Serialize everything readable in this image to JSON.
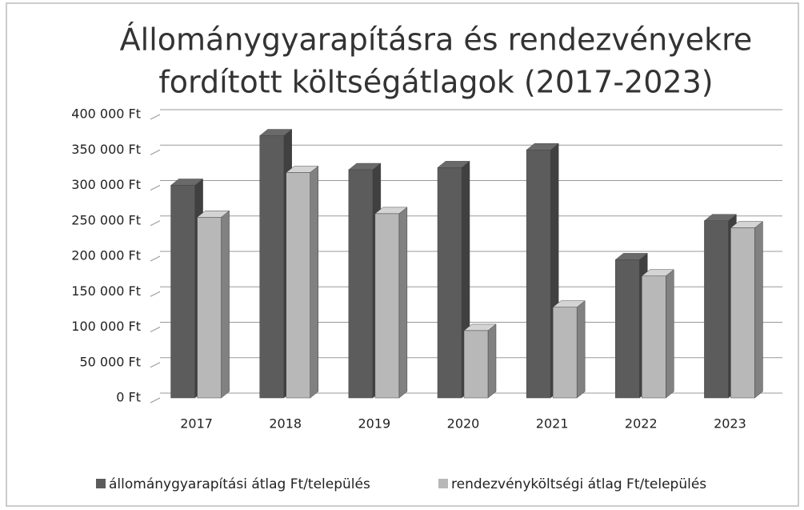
{
  "chart_data": {
    "type": "bar",
    "title": [
      "Állománygyarapításra és rendezvényekre",
      "fordított költségátlagok (2017-2023)"
    ],
    "categories": [
      "2017",
      "2018",
      "2019",
      "2020",
      "2021",
      "2022",
      "2023"
    ],
    "series": [
      {
        "name": "állománygyarapítási átlag Ft/település",
        "color": "#5c5c5c",
        "values": [
          300000,
          370000,
          322000,
          325000,
          350000,
          195000,
          250000
        ]
      },
      {
        "name": "rendezvényköltségi átlag Ft/település",
        "color": "#b8b8b8",
        "values": [
          255000,
          318000,
          260000,
          95000,
          128000,
          172000,
          240000
        ]
      }
    ],
    "ylim": [
      0,
      400000
    ],
    "yticks": [
      {
        "value": 0,
        "label": "0 Ft"
      },
      {
        "value": 50000,
        "label": "50 000 Ft"
      },
      {
        "value": 100000,
        "label": "100 000 Ft"
      },
      {
        "value": 150000,
        "label": "150 000 Ft"
      },
      {
        "value": 200000,
        "label": "200 000 Ft"
      },
      {
        "value": 250000,
        "label": "250 000 Ft"
      },
      {
        "value": 300000,
        "label": "300 000 Ft"
      },
      {
        "value": 350000,
        "label": "350 000 Ft"
      },
      {
        "value": 400000,
        "label": "400 000 Ft"
      }
    ],
    "grid": true,
    "legend": "bottom"
  }
}
